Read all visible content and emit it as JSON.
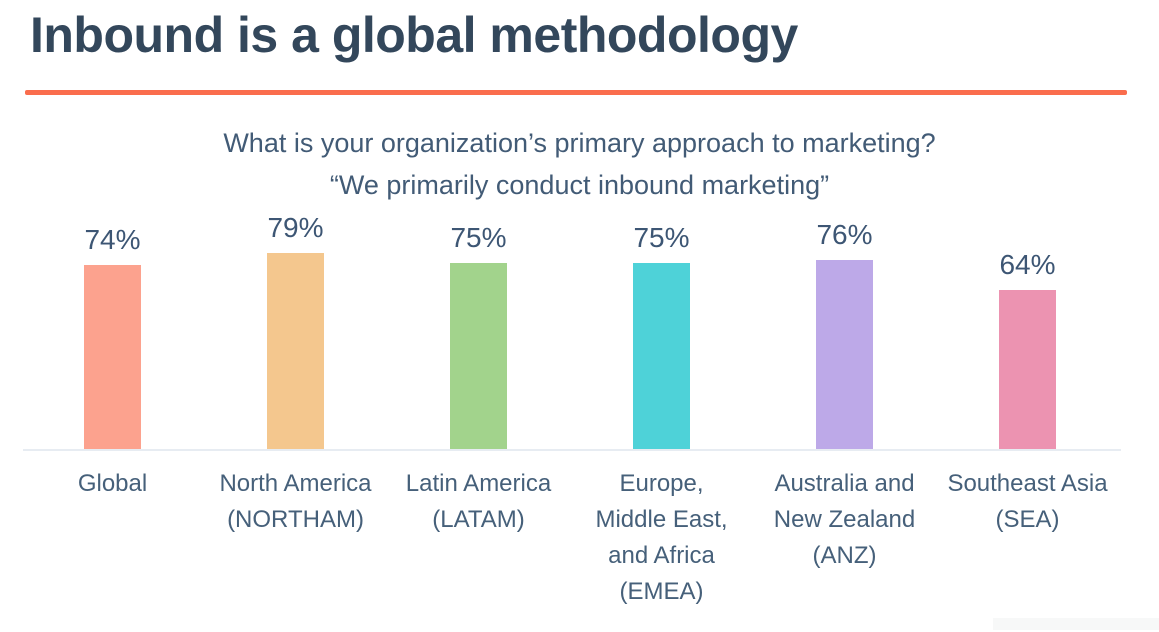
{
  "header": {
    "title": "Inbound is a global methodology",
    "title_color": "#33475b",
    "divider_color": "#fa6d4d"
  },
  "chart_data": {
    "type": "bar",
    "title": "What is your organization’s primary approach to marketing?",
    "subtitle": "“We primarily conduct inbound marketing”",
    "categories": [
      "Global",
      "North America (NORTHAM)",
      "Latin America (LATAM)",
      "Europe, Middle East, and Africa (EMEA)",
      "Australia and New Zealand (ANZ)",
      "Southeast Asia (SEA)"
    ],
    "category_label_lines": [
      [
        "Global"
      ],
      [
        "North America",
        "(NORTHAM)"
      ],
      [
        "Latin America",
        "(LATAM)"
      ],
      [
        "Europe,",
        "Middle East,",
        "and Africa",
        "(EMEA)"
      ],
      [
        "Australia and",
        "New Zealand",
        "(ANZ)"
      ],
      [
        "Southeast Asia",
        "(SEA)"
      ]
    ],
    "values": [
      74,
      79,
      75,
      75,
      76,
      64
    ],
    "value_labels": [
      "74%",
      "79%",
      "75%",
      "75%",
      "76%",
      "64%"
    ],
    "unit": "%",
    "bar_colors": [
      "#fca28e",
      "#f4c78e",
      "#a2d38c",
      "#4ed2d8",
      "#bda9e8",
      "#ec93b1"
    ],
    "ylim": [
      0,
      100
    ],
    "grid": false,
    "legend": "none",
    "xlabel": "",
    "ylabel": ""
  }
}
